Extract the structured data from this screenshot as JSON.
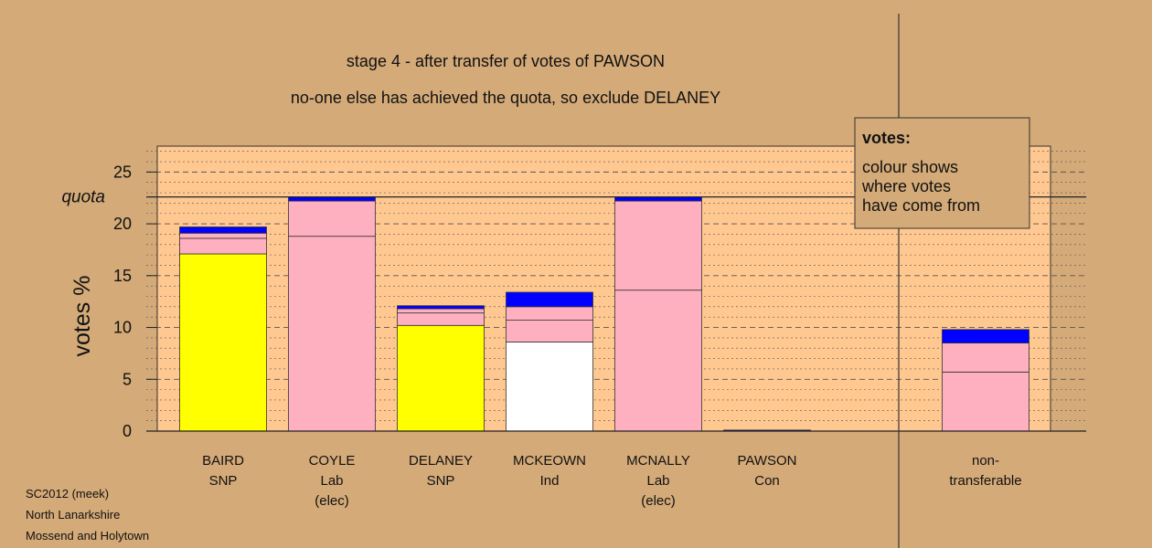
{
  "title_lines": [
    "stage 4 - after transfer of votes of PAWSON",
    "no-one else has achieved the quota, so exclude DELANEY"
  ],
  "footer_lines": [
    "SC2012 (meek)",
    "North Lanarkshire",
    "Mossend and Holytown"
  ],
  "legend": {
    "title": "votes:",
    "lines": [
      "colour shows",
      "where votes",
      "have come from"
    ]
  },
  "chart_data": {
    "type": "bar",
    "stacked": true,
    "ylabel": "votes %",
    "ylim": [
      0,
      27.5
    ],
    "yticks": [
      0,
      5,
      10,
      15,
      20,
      25
    ],
    "quota": 22.6,
    "quota_label": "quota",
    "gridlines": "dashed every 5, dotted every 1",
    "colors": {
      "background": "#d4aa78",
      "plot_area": "#ffc890",
      "SNP": "#ffff00",
      "Lab": "#ffb0c0",
      "Ind": "#ffffff",
      "Con": "#0000ff"
    },
    "categories": [
      {
        "name": "BAIRD",
        "party": "SNP",
        "note": "",
        "segments": [
          {
            "value": 17.1,
            "color": "#ffff00"
          },
          {
            "value": 1.5,
            "color": "#ffb0c0"
          },
          {
            "value": 0.5,
            "color": "#ffb0c0"
          },
          {
            "value": 0.6,
            "color": "#0000ff"
          }
        ]
      },
      {
        "name": "COYLE",
        "party": "Lab",
        "note": "(elec)",
        "segments": [
          {
            "value": 18.8,
            "color": "#ffb0c0"
          },
          {
            "value": 3.4,
            "color": "#ffb0c0"
          },
          {
            "value": 0.4,
            "color": "#0000ff"
          }
        ]
      },
      {
        "name": "DELANEY",
        "party": "SNP",
        "note": "",
        "segments": [
          {
            "value": 10.2,
            "color": "#ffff00"
          },
          {
            "value": 1.2,
            "color": "#ffb0c0"
          },
          {
            "value": 0.4,
            "color": "#ffb0c0"
          },
          {
            "value": 0.3,
            "color": "#0000ff"
          }
        ]
      },
      {
        "name": "MCKEOWN",
        "party": "Ind",
        "note": "",
        "segments": [
          {
            "value": 8.6,
            "color": "#ffffff"
          },
          {
            "value": 2.1,
            "color": "#ffb0c0"
          },
          {
            "value": 1.3,
            "color": "#ffb0c0"
          },
          {
            "value": 1.4,
            "color": "#0000ff"
          }
        ]
      },
      {
        "name": "MCNALLY",
        "party": "Lab",
        "note": "(elec)",
        "segments": [
          {
            "value": 13.6,
            "color": "#ffb0c0"
          },
          {
            "value": 8.6,
            "color": "#ffb0c0"
          },
          {
            "value": 0.4,
            "color": "#0000ff"
          }
        ]
      },
      {
        "name": "PAWSON",
        "party": "Con",
        "note": "",
        "segments": [
          {
            "value": 0.1,
            "color": "#0000ff"
          }
        ]
      },
      {
        "name": "non-",
        "party": "transferable",
        "note": "",
        "segments": [
          {
            "value": 5.7,
            "color": "#ffb0c0"
          },
          {
            "value": 2.8,
            "color": "#ffb0c0"
          },
          {
            "value": 1.3,
            "color": "#0000ff"
          }
        ]
      }
    ]
  }
}
